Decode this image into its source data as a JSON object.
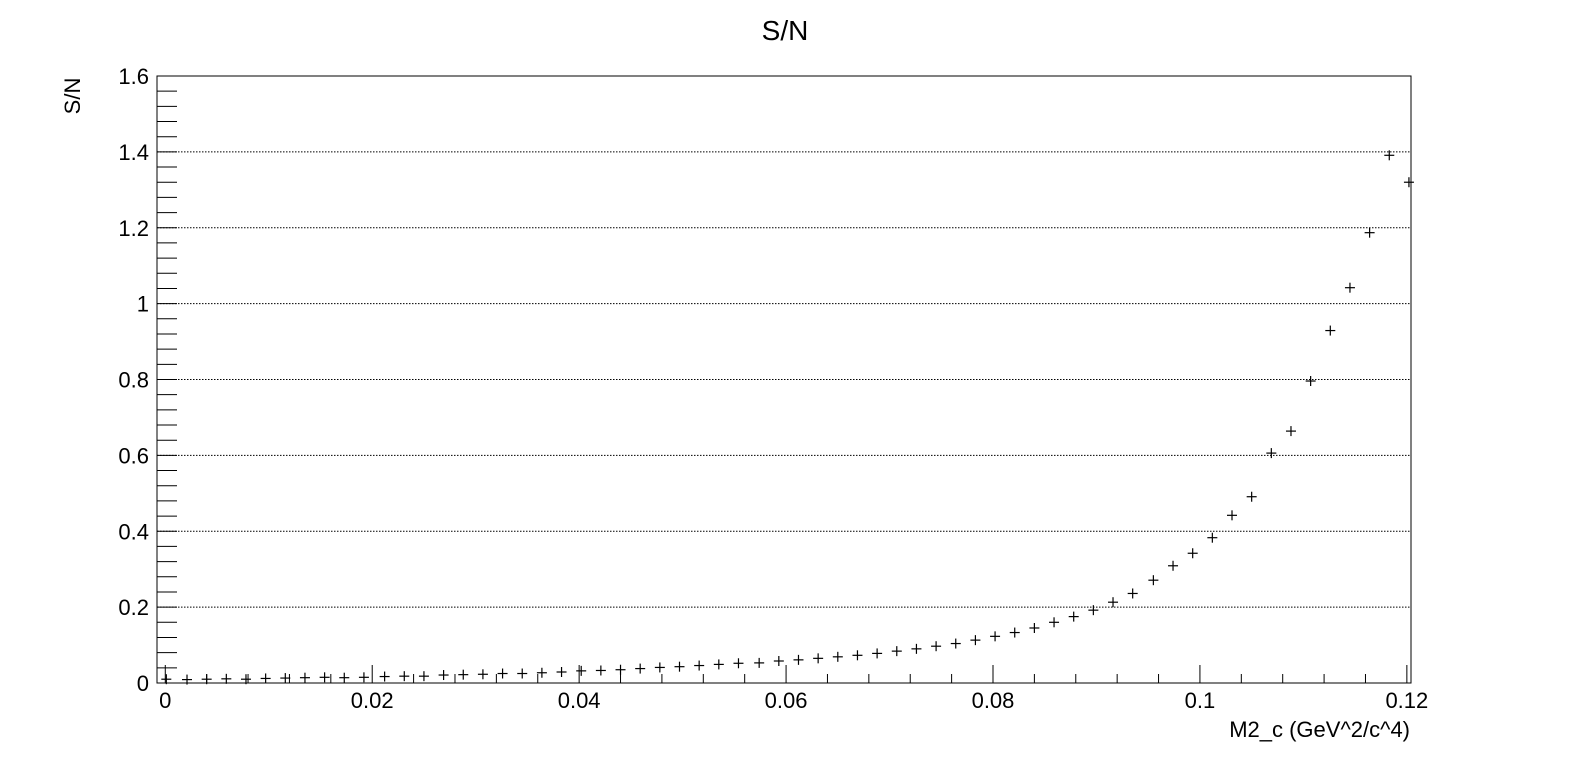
{
  "chart_data": {
    "type": "scatter",
    "title": "S/N",
    "xlabel": "M2_c (GeV^2/c^4)",
    "ylabel": "S/N",
    "xlim": [
      -0.0008,
      0.1204
    ],
    "ylim": [
      0,
      1.6
    ],
    "x_ticks": [
      0,
      0.02,
      0.04,
      0.06,
      0.08,
      0.1,
      0.12
    ],
    "x_tick_labels": [
      "0",
      "0.02",
      "0.04",
      "0.06",
      "0.08",
      "0.1",
      "0.12"
    ],
    "y_ticks": [
      0,
      0.2,
      0.4,
      0.6,
      0.8,
      1,
      1.2,
      1.4,
      1.6
    ],
    "y_tick_labels": [
      "0",
      "0.2",
      "0.4",
      "0.6",
      "0.8",
      "1",
      "1.2",
      "1.4",
      "1.6"
    ],
    "grid": "horizontal dotted",
    "marker": "+",
    "series": [
      {
        "x": [
          0.0001,
          0.0021,
          0.004,
          0.0059,
          0.0078,
          0.0097,
          0.0116,
          0.0135,
          0.0154,
          0.0173,
          0.0192,
          0.0212,
          0.0231,
          0.025,
          0.0269,
          0.0288,
          0.0307,
          0.0326,
          0.0345,
          0.0364,
          0.0383,
          0.0402,
          0.0421,
          0.044,
          0.0459,
          0.0478,
          0.0497,
          0.0516,
          0.0535,
          0.0554,
          0.0574,
          0.0593,
          0.0612,
          0.0631,
          0.065,
          0.0669,
          0.0688,
          0.0707,
          0.0726,
          0.0745,
          0.0764,
          0.0783,
          0.0802,
          0.0821,
          0.084,
          0.0859,
          0.0878,
          0.0897,
          0.0916,
          0.0935,
          0.0955,
          0.0974,
          0.0993,
          0.1012,
          0.1031,
          0.105,
          0.1069,
          0.1088,
          0.1107,
          0.1126,
          0.1145,
          0.1164,
          0.1183,
          0.1202
        ],
        "y": [
          0.01,
          0.009,
          0.01,
          0.011,
          0.01,
          0.012,
          0.013,
          0.014,
          0.015,
          0.014,
          0.015,
          0.017,
          0.018,
          0.018,
          0.021,
          0.022,
          0.023,
          0.025,
          0.025,
          0.027,
          0.029,
          0.032,
          0.033,
          0.035,
          0.038,
          0.041,
          0.043,
          0.046,
          0.049,
          0.052,
          0.053,
          0.058,
          0.061,
          0.065,
          0.069,
          0.073,
          0.078,
          0.084,
          0.09,
          0.097,
          0.104,
          0.113,
          0.123,
          0.133,
          0.145,
          0.16,
          0.175,
          0.192,
          0.213,
          0.236,
          0.271,
          0.309,
          0.342,
          0.383,
          0.442,
          0.491,
          0.606,
          0.664,
          0.796,
          0.929,
          1.042,
          1.187,
          1.391,
          1.32
        ]
      }
    ]
  }
}
